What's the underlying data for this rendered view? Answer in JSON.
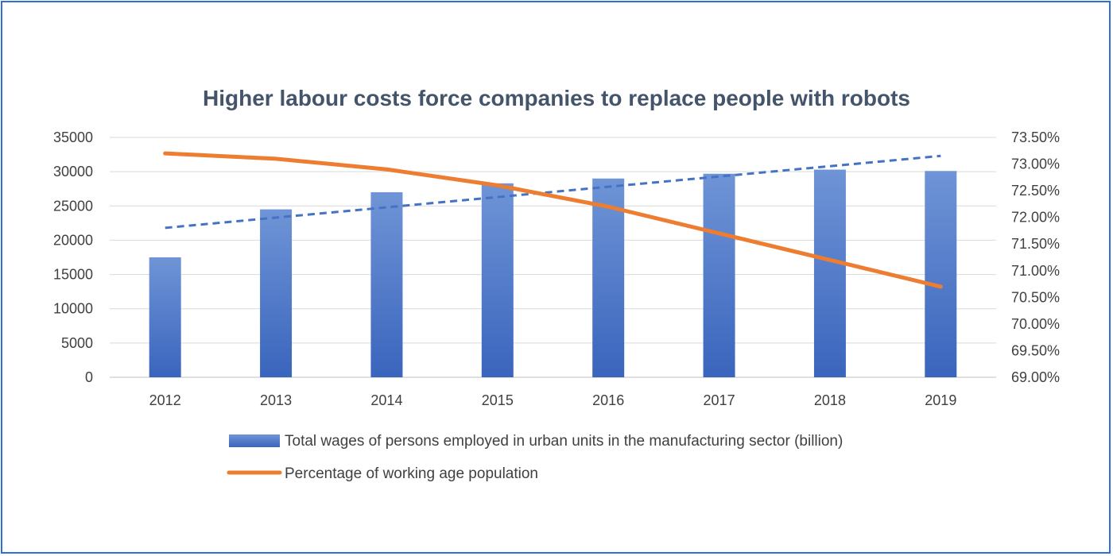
{
  "chart_data": {
    "type": "bar",
    "title": "Higher labour costs force companies to replace people with robots",
    "categories": [
      "2012",
      "2013",
      "2014",
      "2015",
      "2016",
      "2017",
      "2018",
      "2019"
    ],
    "y_left": {
      "min": 0,
      "max": 35000,
      "step": 5000,
      "ticks": [
        "0",
        "5000",
        "10000",
        "15000",
        "20000",
        "25000",
        "30000",
        "35000"
      ]
    },
    "y_right": {
      "min": 69.0,
      "max": 73.5,
      "step": 0.5,
      "ticks": [
        "69.00%",
        "69.50%",
        "70.00%",
        "70.50%",
        "71.00%",
        "71.50%",
        "72.00%",
        "72.50%",
        "73.00%",
        "73.50%"
      ]
    },
    "grid": true,
    "series": [
      {
        "name": "Total wages of persons employed in urban units in the manufacturing sector (billion)",
        "type": "bar",
        "axis": "left",
        "color": "#4472c4",
        "values": [
          17500,
          24500,
          27000,
          28300,
          29000,
          29700,
          30300,
          30100
        ]
      },
      {
        "name": "Percentage of working age population",
        "type": "line",
        "axis": "right",
        "color": "#ed7d31",
        "values": [
          73.2,
          73.1,
          72.9,
          72.6,
          72.2,
          71.7,
          71.2,
          70.7
        ]
      }
    ],
    "trendline": {
      "of_series": 0,
      "style": "dashed",
      "color": "#4472c4",
      "start_value": 21800,
      "end_value": 32300
    },
    "legend_position": "bottom"
  }
}
